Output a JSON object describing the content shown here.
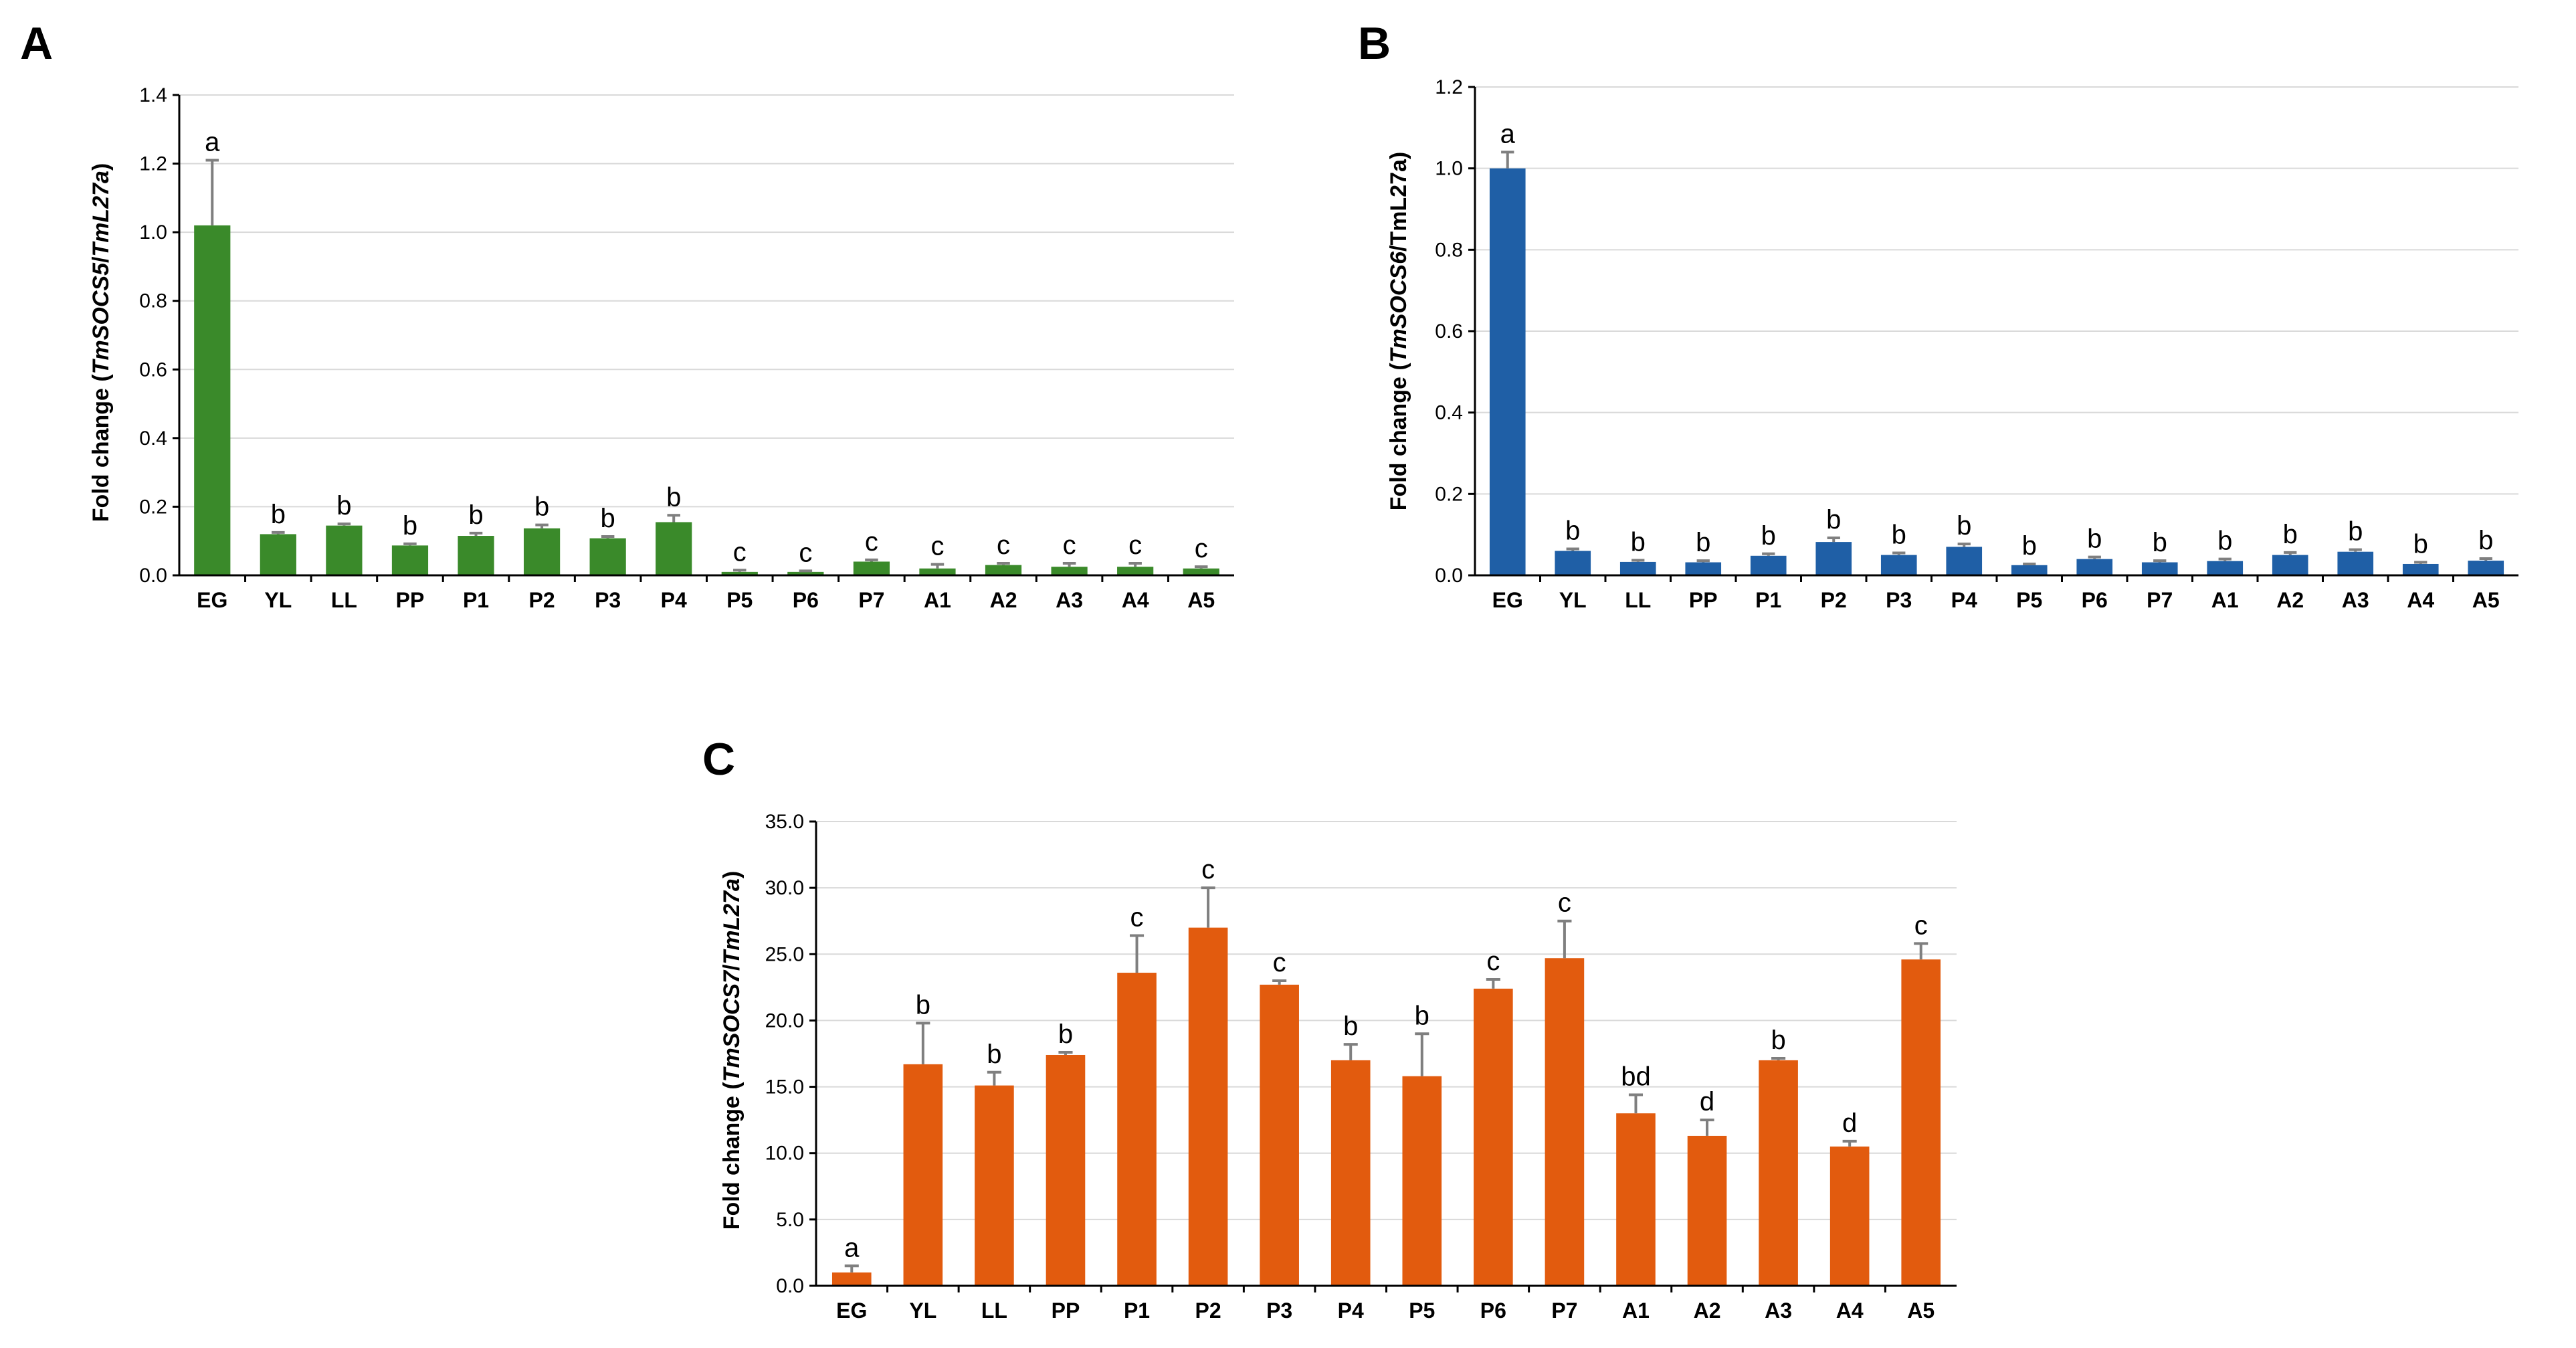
{
  "chart_data": [
    {
      "type": "bar",
      "panel": "A",
      "ylabel_prefix": "Fold change (",
      "ylabel_gene": "TmSOCS5",
      "ylabel_sep": "/",
      "ylabel_ref": "TmL27a",
      "ylabel_suffix": ")",
      "ylim": [
        0,
        1.4
      ],
      "yticks": [
        "0.0",
        "0.2",
        "0.4",
        "0.6",
        "0.8",
        "1.0",
        "1.2",
        "1.4"
      ],
      "color": "#3a8a2a",
      "categories": [
        "EG",
        "YL",
        "LL",
        "PP",
        "P1",
        "P2",
        "P3",
        "P4",
        "P5",
        "P6",
        "P7",
        "A1",
        "A2",
        "A3",
        "A4",
        "A5"
      ],
      "values": [
        1.02,
        0.12,
        0.145,
        0.087,
        0.115,
        0.137,
        0.108,
        0.155,
        0.01,
        0.01,
        0.04,
        0.02,
        0.03,
        0.025,
        0.025,
        0.02
      ],
      "errors": [
        0.19,
        0.005,
        0.005,
        0.005,
        0.008,
        0.01,
        0.005,
        0.02,
        0.005,
        0.003,
        0.005,
        0.012,
        0.005,
        0.01,
        0.01,
        0.005
      ],
      "letters": [
        "a",
        "b",
        "b",
        "b",
        "b",
        "b",
        "b",
        "b",
        "c",
        "c",
        "c",
        "c",
        "c",
        "c",
        "c",
        "c"
      ]
    },
    {
      "type": "bar",
      "panel": "B",
      "ylabel_prefix": "Fold change (",
      "ylabel_gene": "TmSOCS6",
      "ylabel_sep": "/",
      "ylabel_ref": "TmL27a",
      "ylabel_suffix": ")",
      "ylim": [
        0,
        1.2
      ],
      "yticks": [
        "0.0",
        "0.2",
        "0.4",
        "0.6",
        "0.8",
        "1.0",
        "1.2"
      ],
      "color": "#1f5fa6",
      "categories": [
        "EG",
        "YL",
        "LL",
        "PP",
        "P1",
        "P2",
        "P3",
        "P4",
        "P5",
        "P6",
        "P7",
        "A1",
        "A2",
        "A3",
        "A4",
        "A5"
      ],
      "values": [
        1.0,
        0.06,
        0.033,
        0.032,
        0.048,
        0.082,
        0.05,
        0.07,
        0.025,
        0.04,
        0.032,
        0.035,
        0.05,
        0.058,
        0.028,
        0.036
      ],
      "errors": [
        0.04,
        0.005,
        0.004,
        0.004,
        0.005,
        0.01,
        0.005,
        0.007,
        0.003,
        0.005,
        0.004,
        0.005,
        0.006,
        0.005,
        0.004,
        0.005
      ],
      "letters": [
        "a",
        "b",
        "b",
        "b",
        "b",
        "b",
        "b",
        "b",
        "b",
        "b",
        "b",
        "b",
        "b",
        "b",
        "b",
        "b"
      ]
    },
    {
      "type": "bar",
      "panel": "C",
      "ylabel_prefix": "Fold change (",
      "ylabel_gene": "TmSOCS7",
      "ylabel_sep": "/",
      "ylabel_ref": "TmL27a",
      "ylabel_suffix": ")",
      "ylim": [
        0,
        35
      ],
      "yticks": [
        "0.0",
        "5.0",
        "10.0",
        "15.0",
        "20.0",
        "25.0",
        "30.0",
        "35.0"
      ],
      "color": "#e25b0e",
      "categories": [
        "EG",
        "YL",
        "LL",
        "PP",
        "P1",
        "P2",
        "P3",
        "P4",
        "P5",
        "P6",
        "P7",
        "A1",
        "A2",
        "A3",
        "A4",
        "A5"
      ],
      "values": [
        1.0,
        16.7,
        15.1,
        17.4,
        23.6,
        27.0,
        22.7,
        17.0,
        15.8,
        22.4,
        24.7,
        13.0,
        11.3,
        17.0,
        10.5,
        24.6
      ],
      "errors": [
        0.5,
        3.1,
        1.0,
        0.2,
        2.8,
        3.0,
        0.3,
        1.2,
        3.2,
        0.7,
        2.8,
        1.4,
        1.2,
        0.15,
        0.4,
        1.2
      ],
      "letters": [
        "a",
        "b",
        "b",
        "b",
        "c",
        "c",
        "c",
        "b",
        "b",
        "c",
        "c",
        "bd",
        "d",
        "b",
        "d",
        "c"
      ]
    }
  ]
}
